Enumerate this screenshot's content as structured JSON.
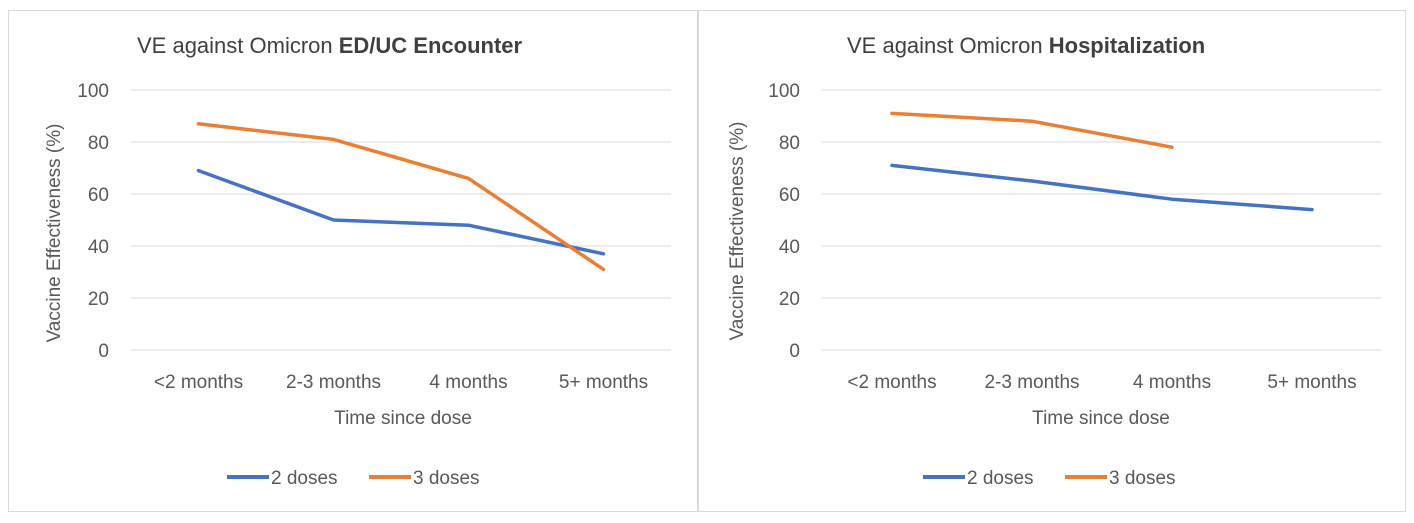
{
  "colors": {
    "series_2_doses": "#4472c4",
    "series_3_doses": "#ed7d31",
    "grid": "#d9d9d9",
    "text": "#595959"
  },
  "chart_data": [
    {
      "type": "line",
      "title_prefix": "VE against Omicron ",
      "title_bold": "ED/UC Encounter",
      "xlabel": "Time since dose",
      "ylabel": "Vaccine Effectiveness (%)",
      "categories": [
        "<2 months",
        "2-3 months",
        "4 months",
        "5+ months"
      ],
      "ylim": [
        0,
        100
      ],
      "yticks": [
        "0",
        "20",
        "40",
        "60",
        "80",
        "100"
      ],
      "grid": true,
      "legend": "bottom",
      "series": [
        {
          "name": "2 doses",
          "color": "#4472c4",
          "values": [
            69,
            50,
            48,
            37
          ]
        },
        {
          "name": "3 doses",
          "color": "#ed7d31",
          "values": [
            87,
            81,
            66,
            31
          ]
        }
      ]
    },
    {
      "type": "line",
      "title_prefix": "VE against Omicron ",
      "title_bold": "Hospitalization",
      "xlabel": "Time since dose",
      "ylabel": "Vaccine Effectiveness (%)",
      "categories": [
        "<2 months",
        "2-3 months",
        "4 months",
        "5+ months"
      ],
      "ylim": [
        0,
        100
      ],
      "yticks": [
        "0",
        "20",
        "40",
        "60",
        "80",
        "100"
      ],
      "grid": true,
      "legend": "bottom",
      "series": [
        {
          "name": "2 doses",
          "color": "#4472c4",
          "values": [
            71,
            65,
            58,
            54
          ]
        },
        {
          "name": "3 doses",
          "color": "#ed7d31",
          "values": [
            91,
            88,
            78,
            null
          ]
        }
      ]
    }
  ]
}
